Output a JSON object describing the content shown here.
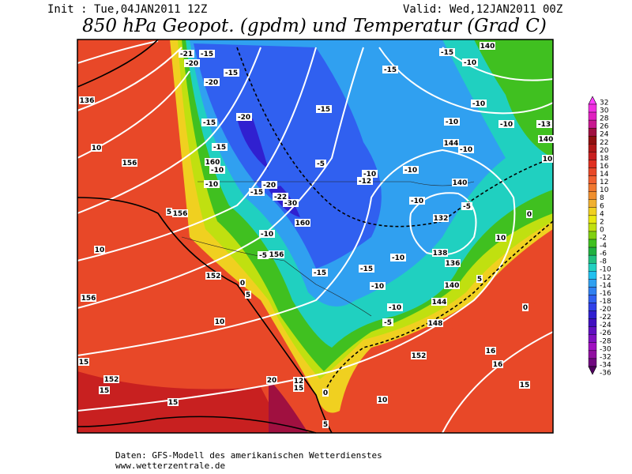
{
  "header": {
    "init": "Init : Tue,04JAN2011 12Z",
    "valid": "Valid: Wed,12JAN2011 00Z",
    "title": "850 hPa Geopot. (gpdm) und Temperatur (Grad C)"
  },
  "colorbar": {
    "levels": [
      32,
      30,
      28,
      26,
      24,
      22,
      20,
      18,
      16,
      14,
      12,
      10,
      8,
      6,
      4,
      2,
      0,
      -2,
      -4,
      -6,
      -8,
      -10,
      -12,
      -14,
      -16,
      -18,
      -20,
      -22,
      -24,
      -26,
      -28,
      -30,
      -32,
      -34,
      -36
    ],
    "colors": [
      "#ff40ff",
      "#f030e0",
      "#e020c0",
      "#c81890",
      "#a01040",
      "#901010",
      "#b01818",
      "#c82020",
      "#e03020",
      "#e84828",
      "#f06030",
      "#f07830",
      "#f09030",
      "#f0b030",
      "#f0d020",
      "#e8e810",
      "#c0e010",
      "#80d010",
      "#40c020",
      "#20b040",
      "#20c080",
      "#20d0c0",
      "#20c0f0",
      "#30a0f0",
      "#3080f0",
      "#3060f0",
      "#3040e8",
      "#3020d0",
      "#4010c0",
      "#6010c0",
      "#8010c0",
      "#a010c0",
      "#9010a0",
      "#700880",
      "#500060"
    ]
  },
  "map_labels": [
    "-21",
    "-15",
    "-20",
    "-20",
    "-15",
    "-15",
    "-15",
    "-10",
    "140",
    "136",
    "-15",
    "-20",
    "-15",
    "-10",
    "-10",
    "-10",
    "-13",
    "140",
    "10",
    "156",
    "-15",
    "160",
    "-10",
    "-10",
    "-5",
    "144",
    "-10",
    "10",
    "-10",
    "-10",
    "-12",
    "140",
    "-20",
    "-22",
    "-30",
    "-15",
    "-10",
    "-5",
    "0",
    "5",
    "156",
    "132",
    "160",
    "-10",
    "10",
    "10",
    "-5",
    "156",
    "138",
    "-10",
    "136",
    "-15",
    "-15",
    "152",
    "0",
    "5",
    "140",
    "-10",
    "5",
    "156",
    "144",
    "-10",
    "0",
    "10",
    "-5",
    "148",
    "152",
    "16",
    "16",
    "15",
    "152",
    "15",
    "20",
    "12",
    "15",
    "0",
    "15",
    "10",
    "15",
    "5"
  ],
  "footer": {
    "line1": "Daten: GFS-Modell des amerikanischen Wetterdienstes",
    "line2": "www.wetterzentrale.de"
  }
}
